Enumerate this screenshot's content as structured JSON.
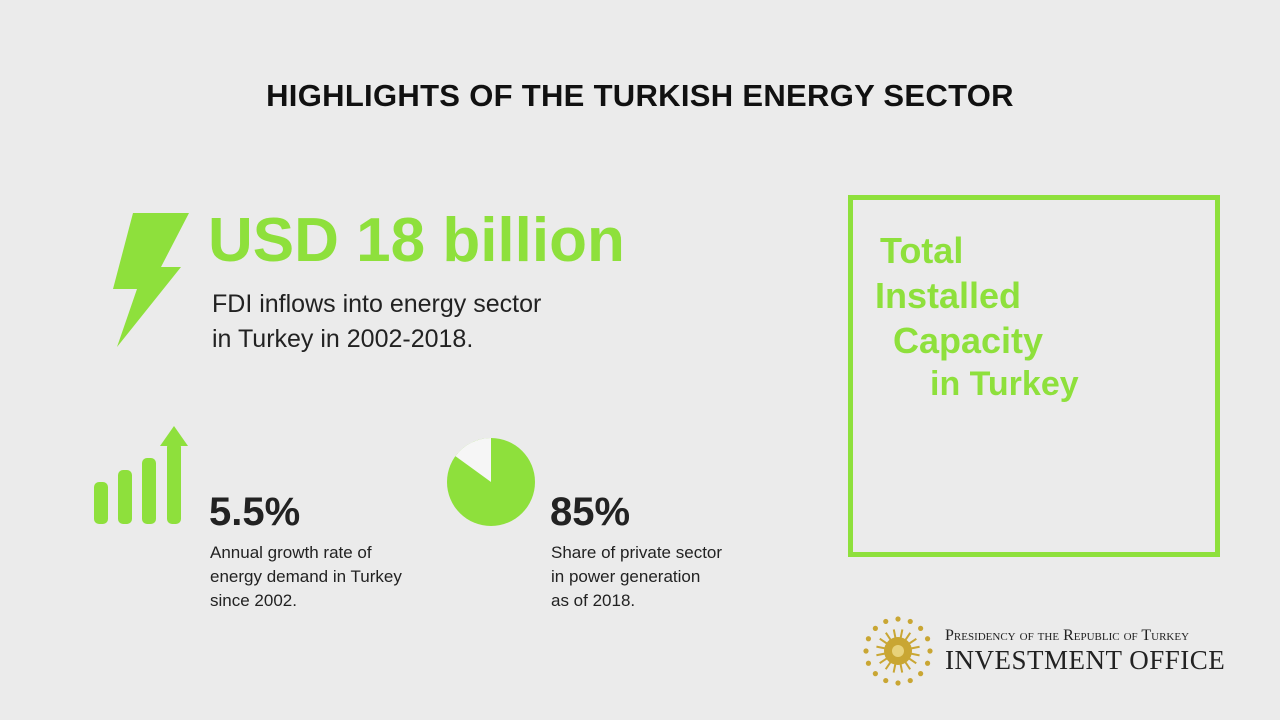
{
  "header": {
    "title": "HIGHLIGHTS OF THE TURKISH ENERGY SECTOR"
  },
  "fdi": {
    "value": "USD 18 billion",
    "description": [
      "FDI inflows into energy sector",
      "in Turkey in 2002-2018."
    ]
  },
  "growth": {
    "value": "5.5%",
    "description": [
      "Annual growth rate of",
      "energy demand in Turkey",
      "since 2002."
    ]
  },
  "private_share": {
    "value": "85%",
    "description": [
      "Share of private sector",
      "in power generation",
      "as of 2018."
    ]
  },
  "capacity_box": {
    "lines": [
      "Total",
      "Installed",
      "Capacity",
      "in Turkey"
    ]
  },
  "logo": {
    "line1": "Presidency of the Republic of Turkey",
    "line2": "INVESTMENT OFFICE"
  }
}
